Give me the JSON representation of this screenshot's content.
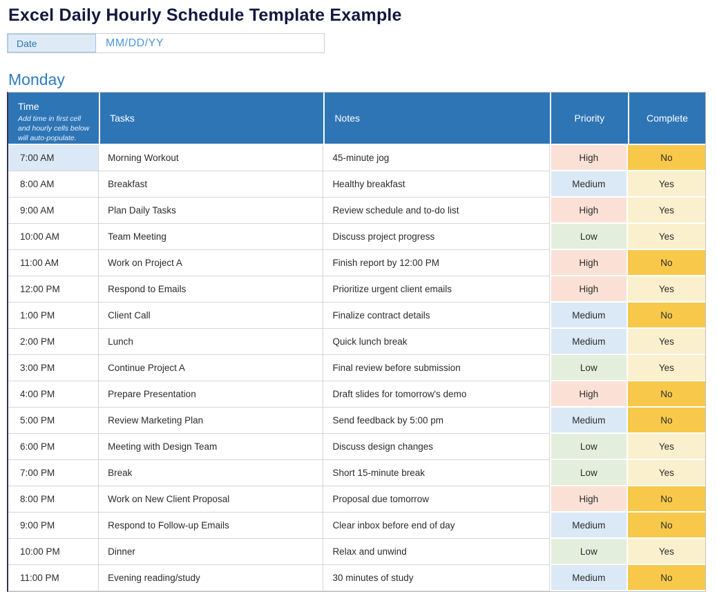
{
  "page": {
    "title": "Excel Daily Hourly Schedule Template Example",
    "date_label": "Date",
    "date_placeholder": "MM/DD/YY",
    "day_heading": "Monday"
  },
  "table": {
    "headers": {
      "time": "Time",
      "time_note": "Add time in first cell and hourly cells below will auto-populate.",
      "tasks": "Tasks",
      "notes": "Notes",
      "priority": "Priority",
      "complete": "Complete"
    },
    "rows": [
      {
        "time": "7:00 AM",
        "task": "Morning Workout",
        "note": "45-minute jog",
        "priority": "High",
        "complete": "No"
      },
      {
        "time": "8:00 AM",
        "task": "Breakfast",
        "note": "Healthy breakfast",
        "priority": "Medium",
        "complete": "Yes"
      },
      {
        "time": "9:00 AM",
        "task": "Plan Daily Tasks",
        "note": "Review schedule and to-do list",
        "priority": "High",
        "complete": "Yes"
      },
      {
        "time": "10:00 AM",
        "task": "Team Meeting",
        "note": "Discuss project progress",
        "priority": "Low",
        "complete": "Yes"
      },
      {
        "time": "11:00 AM",
        "task": "Work on Project A",
        "note": "Finish report by 12:00 PM",
        "priority": "High",
        "complete": "No"
      },
      {
        "time": "12:00 PM",
        "task": "Respond to Emails",
        "note": "Prioritize urgent client emails",
        "priority": "High",
        "complete": "Yes"
      },
      {
        "time": "1:00 PM",
        "task": "Client Call",
        "note": "Finalize contract details",
        "priority": "Medium",
        "complete": "No"
      },
      {
        "time": "2:00 PM",
        "task": "Lunch",
        "note": "Quick lunch break",
        "priority": "Medium",
        "complete": "Yes"
      },
      {
        "time": "3:00 PM",
        "task": "Continue Project A",
        "note": "Final review before submission",
        "priority": "Low",
        "complete": "Yes"
      },
      {
        "time": "4:00 PM",
        "task": "Prepare Presentation",
        "note": "Draft slides for tomorrow's demo",
        "priority": "High",
        "complete": "No"
      },
      {
        "time": "5:00 PM",
        "task": "Review Marketing Plan",
        "note": "Send feedback by 5:00 pm",
        "priority": "Medium",
        "complete": "No"
      },
      {
        "time": "6:00 PM",
        "task": "Meeting with Design Team",
        "note": "Discuss design changes",
        "priority": "Low",
        "complete": "Yes"
      },
      {
        "time": "7:00 PM",
        "task": "Break",
        "note": "Short 15-minute break",
        "priority": "Low",
        "complete": "Yes"
      },
      {
        "time": "8:00 PM",
        "task": "Work on New Client Proposal",
        "note": "Proposal due tomorrow",
        "priority": "High",
        "complete": "No"
      },
      {
        "time": "9:00 PM",
        "task": "Respond to Follow-up Emails",
        "note": "Clear inbox before end of day",
        "priority": "Medium",
        "complete": "No"
      },
      {
        "time": "10:00 PM",
        "task": "Dinner",
        "note": "Relax and unwind",
        "priority": "Low",
        "complete": "Yes"
      },
      {
        "time": "11:00 PM",
        "task": "Evening reading/study",
        "note": "30 minutes of study",
        "priority": "Medium",
        "complete": "No"
      }
    ]
  },
  "colors": {
    "header_blue": "#2E75B6",
    "title_navy": "#14173F",
    "day_heading_blue": "#2F7BC3",
    "date_label_bg": "#DEEBF7",
    "first_time_cell_bg": "#DBE9F6",
    "priority_high_bg": "#FBE1D5",
    "priority_medium_bg": "#DBE9F6",
    "priority_low_bg": "#E3EFDC",
    "complete_no_bg": "#F7C84A",
    "complete_yes_bg": "#FBF0CD"
  }
}
